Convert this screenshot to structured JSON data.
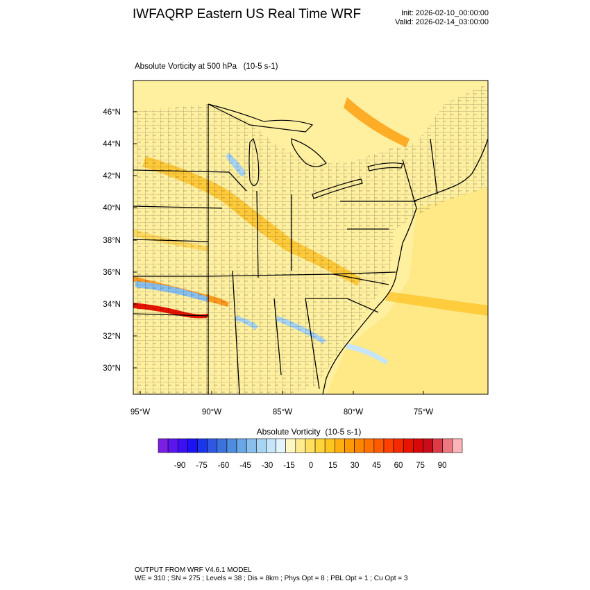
{
  "header": {
    "title": "IWFAQRP Eastern US Real Time WRF",
    "init": "Init: 2026-02-10_00:00:00",
    "valid": "Valid: 2026-02-14_03:00:00"
  },
  "plot": {
    "subtitle": "Absolute Vorticity at 500 hPa   (10-5 s-1)",
    "lat_labels": [
      "46°N",
      "44°N",
      "42°N",
      "40°N",
      "38°N",
      "36°N",
      "34°N",
      "32°N",
      "30°N"
    ],
    "lon_labels": [
      "95°W",
      "90°W",
      "85°W",
      "80°W",
      "75°W"
    ]
  },
  "colorbar": {
    "title": "Absolute Vorticity  (10-5 s-1)",
    "tick_labels": [
      "-90",
      "-75",
      "-60",
      "-45",
      "-30",
      "-15",
      "0",
      "15",
      "30",
      "45",
      "60",
      "75",
      "90"
    ],
    "colors": [
      "#7a1ee6",
      "#5b16f0",
      "#3d0ff5",
      "#1c12f5",
      "#1a36ec",
      "#2f58e2",
      "#3b72dc",
      "#4e8ce0",
      "#69a7e6",
      "#88bfec",
      "#a7d4f2",
      "#c6e5f8",
      "#e3f4fb",
      "#fff7c2",
      "#ffec90",
      "#ffe060",
      "#ffd43a",
      "#ffc520",
      "#ffb010",
      "#ff9a05",
      "#ff8600",
      "#ff7200",
      "#ff5a00",
      "#ff4000",
      "#f52a00",
      "#e81400",
      "#d80808",
      "#c80c1c",
      "#dc3c48",
      "#ee7880",
      "#fcb4b8"
    ]
  },
  "footer": {
    "line1": "OUTPUT FROM WRF V4.6.1 MODEL",
    "line2": "WE = 310 ; SN = 275 ; Levels = 38 ; Dis = 8km ; Phys Opt = 8 ; PBL Opt = 1 ; Cu Opt = 3"
  }
}
